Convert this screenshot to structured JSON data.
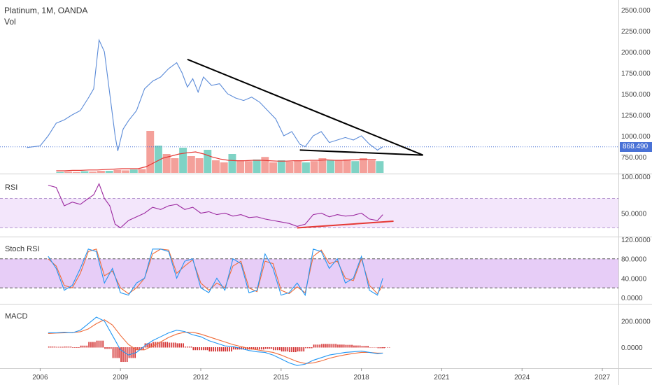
{
  "header": {
    "title": "Platinum, 1M, OANDA",
    "volume_label": "Vol"
  },
  "price_tag": "868.490",
  "panes": {
    "rsi": "RSI",
    "stoch": "Stoch RSI",
    "macd": "MACD"
  },
  "colors": {
    "price_line": "#5b8bd8",
    "trendline": "#000000",
    "support_red": "#e53935",
    "rsi_line": "#9c2aa0",
    "rsi_band": "#f3e6fb",
    "stoch_k": "#2196f3",
    "stoch_d": "#ef6c3a",
    "stoch_band": "#e7cdf7",
    "macd_line": "#2196f3",
    "signal_line": "#ef6c3a",
    "hist": "#d32f2f",
    "vol_up": "#7fd3c5",
    "vol_down": "#f4a09a",
    "price_tag": "#4a72d6"
  },
  "chart_data": [
    {
      "type": "line",
      "pane": "price",
      "series": [
        {
          "x": [
            2005.5,
            2006.0,
            2006.3,
            2006.6,
            2006.9,
            2007.2,
            2007.5,
            2007.8,
            2008.0,
            2008.2,
            2008.4,
            2008.6,
            2008.8,
            2008.9,
            2009.1,
            2009.3,
            2009.6,
            2009.9,
            2010.2,
            2010.5,
            2010.8,
            2011.1,
            2011.3,
            2011.5,
            2011.7,
            2011.9,
            2012.1,
            2012.4,
            2012.7,
            2013.0,
            2013.3,
            2013.6,
            2013.9,
            2014.2,
            2014.5,
            2014.8,
            2015.1,
            2015.4,
            2015.7,
            2015.9,
            2016.2,
            2016.5,
            2016.8,
            2017.1,
            2017.4,
            2017.7,
            2018.0,
            2018.3,
            2018.6,
            2018.8
          ],
          "values": [
            860,
            880,
            1000,
            1150,
            1190,
            1250,
            1300,
            1450,
            1560,
            2140,
            2000,
            1500,
            1000,
            820,
            1080,
            1180,
            1300,
            1560,
            1650,
            1700,
            1800,
            1870,
            1750,
            1580,
            1680,
            1520,
            1700,
            1600,
            1620,
            1500,
            1450,
            1420,
            1460,
            1400,
            1300,
            1200,
            1000,
            1050,
            900,
            870,
            1000,
            1050,
            920,
            950,
            980,
            950,
            1000,
            900,
            830,
            870
          ]
        }
      ],
      "ylim": [
        750,
        2500
      ],
      "yticks": [
        "2500.000",
        "2250.000",
        "2000.000",
        "1750.000",
        "1500.000",
        "1250.000",
        "1000.000",
        "750.000"
      ],
      "xticks": [
        "2006",
        "2009",
        "2012",
        "2015",
        "2018",
        "2021",
        "2024",
        "2027"
      ],
      "xlim": [
        2004.5,
        2027.6
      ],
      "trendline": {
        "x": [
          2011.5,
          2020.3
        ],
        "y": [
          1910,
          770
        ]
      },
      "support": {
        "x": [
          2015.7,
          2020.3
        ],
        "y": [
          830,
          770
        ]
      },
      "last_value": 868.49
    },
    {
      "type": "bar",
      "pane": "volume",
      "note": "volume bars relative heights",
      "values": [
        0.02,
        0.03,
        0.02,
        0.04,
        0.03,
        0.05,
        0.05,
        0.07,
        0.06,
        0.08,
        0.09,
        1.0,
        0.65,
        0.45,
        0.35,
        0.6,
        0.4,
        0.35,
        0.55,
        0.3,
        0.25,
        0.45,
        0.3,
        0.28,
        0.32,
        0.38,
        0.25,
        0.3,
        0.27,
        0.3,
        0.25,
        0.28,
        0.35,
        0.3,
        0.3,
        0.32,
        0.28,
        0.35,
        0.3,
        0.28
      ],
      "ma": [
        0.05,
        0.05,
        0.06,
        0.06,
        0.07,
        0.07,
        0.08,
        0.09,
        0.1,
        0.1,
        0.1,
        0.15,
        0.25,
        0.35,
        0.4,
        0.45,
        0.48,
        0.5,
        0.45,
        0.38,
        0.33,
        0.3,
        0.29,
        0.29,
        0.3,
        0.3,
        0.29,
        0.28,
        0.28,
        0.29,
        0.29,
        0.3,
        0.3,
        0.31,
        0.3,
        0.3,
        0.31,
        0.32,
        0.32,
        0.32
      ]
    },
    {
      "type": "line",
      "pane": "rsi",
      "x": [
        2006.3,
        2006.6,
        2006.9,
        2007.2,
        2007.5,
        2007.8,
        2008.0,
        2008.2,
        2008.4,
        2008.6,
        2008.8,
        2009.0,
        2009.3,
        2009.6,
        2009.9,
        2010.2,
        2010.5,
        2010.8,
        2011.1,
        2011.4,
        2011.7,
        2012.0,
        2012.3,
        2012.6,
        2012.9,
        2013.2,
        2013.5,
        2013.8,
        2014.1,
        2014.4,
        2014.7,
        2015.0,
        2015.3,
        2015.6,
        2015.9,
        2016.2,
        2016.5,
        2016.8,
        2017.1,
        2017.4,
        2017.7,
        2018.0,
        2018.3,
        2018.6,
        2018.8
      ],
      "values": [
        88,
        85,
        60,
        65,
        62,
        70,
        75,
        90,
        70,
        60,
        35,
        30,
        40,
        45,
        50,
        58,
        55,
        60,
        62,
        55,
        58,
        50,
        52,
        48,
        50,
        46,
        48,
        44,
        45,
        42,
        40,
        38,
        36,
        32,
        35,
        48,
        50,
        45,
        48,
        46,
        47,
        50,
        42,
        40,
        48
      ],
      "ylim": [
        20,
        100
      ],
      "band": [
        30,
        70
      ],
      "yticks": [
        "100.0000",
        "50.0000"
      ],
      "support": {
        "x": [
          2015.6,
          2019.2
        ],
        "y": [
          30,
          39
        ]
      }
    },
    {
      "type": "line",
      "pane": "stoch_rsi",
      "x": [
        2006.3,
        2006.6,
        2006.9,
        2007.2,
        2007.5,
        2007.8,
        2008.1,
        2008.4,
        2008.7,
        2009.0,
        2009.3,
        2009.6,
        2009.9,
        2010.2,
        2010.5,
        2010.8,
        2011.1,
        2011.4,
        2011.7,
        2012.0,
        2012.3,
        2012.6,
        2012.9,
        2013.2,
        2013.5,
        2013.8,
        2014.1,
        2014.4,
        2014.7,
        2015.0,
        2015.3,
        2015.6,
        2015.9,
        2016.2,
        2016.5,
        2016.8,
        2017.1,
        2017.4,
        2017.7,
        2018.0,
        2018.3,
        2018.6,
        2018.8
      ],
      "series": [
        {
          "values": [
            85,
            60,
            15,
            25,
            60,
            100,
            95,
            30,
            60,
            10,
            5,
            30,
            40,
            100,
            100,
            95,
            40,
            75,
            80,
            20,
            10,
            40,
            15,
            80,
            70,
            10,
            15,
            90,
            60,
            5,
            10,
            30,
            5,
            100,
            95,
            60,
            80,
            30,
            40,
            85,
            15,
            5,
            40
          ]
        },
        {
          "values": [
            80,
            65,
            25,
            20,
            50,
            95,
            100,
            45,
            55,
            20,
            8,
            20,
            40,
            90,
            100,
            98,
            50,
            65,
            78,
            30,
            15,
            30,
            20,
            65,
            75,
            20,
            12,
            75,
            70,
            15,
            8,
            22,
            10,
            85,
            98,
            70,
            75,
            40,
            35,
            80,
            25,
            8,
            25
          ]
        }
      ],
      "ylim": [
        -10,
        120
      ],
      "band": [
        20,
        80
      ],
      "yticks": [
        "120.0000",
        "80.0000",
        "40.0000",
        "0.0000"
      ]
    },
    {
      "type": "line",
      "pane": "macd",
      "x": [
        2006.3,
        2006.6,
        2006.9,
        2007.2,
        2007.5,
        2007.8,
        2008.1,
        2008.4,
        2008.7,
        2009.0,
        2009.3,
        2009.6,
        2009.9,
        2010.2,
        2010.5,
        2010.8,
        2011.1,
        2011.4,
        2011.7,
        2012.0,
        2012.3,
        2012.6,
        2012.9,
        2013.2,
        2013.5,
        2013.8,
        2014.1,
        2014.4,
        2014.7,
        2015.0,
        2015.3,
        2015.6,
        2015.9,
        2016.2,
        2016.5,
        2016.8,
        2017.1,
        2017.4,
        2017.7,
        2018.0,
        2018.3,
        2018.6,
        2018.8
      ],
      "series": [
        {
          "values": [
            110,
            110,
            115,
            110,
            130,
            180,
            230,
            200,
            90,
            -20,
            -60,
            -40,
            10,
            50,
            80,
            110,
            130,
            120,
            95,
            80,
            50,
            30,
            10,
            5,
            -10,
            -25,
            -35,
            -40,
            -60,
            -90,
            -120,
            -140,
            -130,
            -100,
            -80,
            -60,
            -50,
            -40,
            -35,
            -30,
            -40,
            -50,
            -45
          ]
        },
        {
          "values": [
            105,
            108,
            110,
            112,
            118,
            140,
            180,
            210,
            170,
            90,
            20,
            -20,
            -20,
            10,
            40,
            75,
            100,
            115,
            115,
            100,
            80,
            60,
            40,
            20,
            5,
            -10,
            -20,
            -30,
            -40,
            -60,
            -85,
            -110,
            -125,
            -120,
            -105,
            -85,
            -70,
            -58,
            -48,
            -40,
            -40,
            -45,
            -45
          ]
        }
      ],
      "histogram": [
        5,
        3,
        5,
        -2,
        12,
        40,
        50,
        -10,
        -80,
        -110,
        -80,
        -20,
        30,
        40,
        40,
        35,
        30,
        5,
        -20,
        -20,
        -30,
        -30,
        -30,
        -15,
        -15,
        -15,
        -15,
        -10,
        -20,
        -30,
        -35,
        -30,
        -5,
        20,
        25,
        25,
        20,
        18,
        13,
        10,
        0,
        -5,
        0
      ],
      "ylim": [
        -150,
        300
      ],
      "yticks": [
        "200.0000",
        "0.0000"
      ]
    }
  ]
}
